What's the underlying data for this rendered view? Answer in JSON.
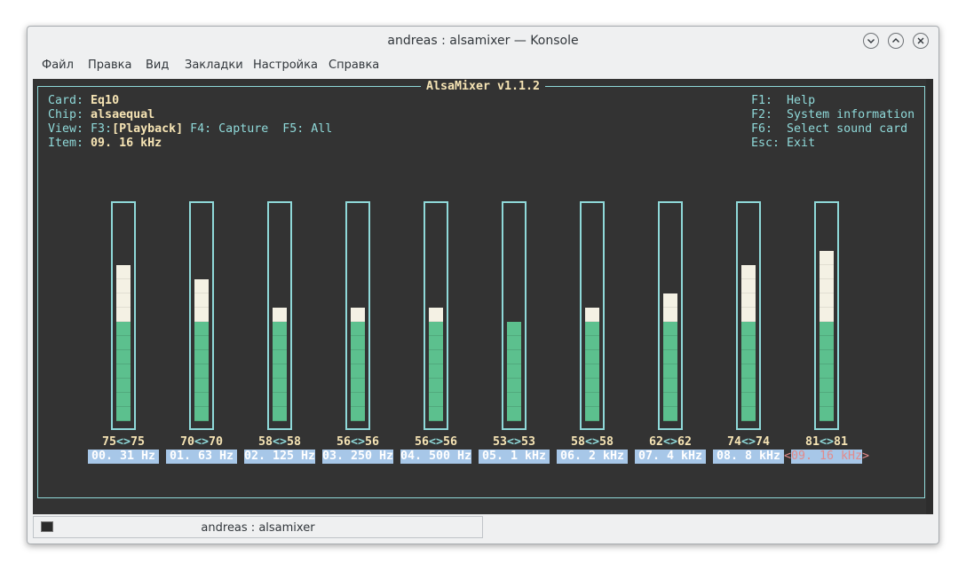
{
  "window": {
    "title": "andreas : alsamixer — Konsole"
  },
  "menu": [
    "Файл",
    "Правка",
    "Вид",
    "Закладки",
    "Настройка",
    "Справка"
  ],
  "mixer": {
    "title": "AlsaMixer v1.1.2",
    "info": {
      "card_label": "Card:",
      "card_value": "Eq10",
      "chip_label": "Chip:",
      "chip_value": "alsaequal",
      "view_label": "View:",
      "view_f3": "F3:",
      "view_playback": "[Playback]",
      "view_f4": "F4: Capture",
      "view_f5": "F5: All",
      "item_label": "Item:",
      "item_value": "09. 16 kHz"
    },
    "help": [
      {
        "key": "F1:",
        "text": "Help"
      },
      {
        "key": "F2:",
        "text": "System information"
      },
      {
        "key": "F6:",
        "text": "Select sound card"
      },
      {
        "key": "Esc:",
        "text": "Exit"
      }
    ],
    "channels": [
      {
        "name": "00. 31 Hz",
        "left": 75,
        "right": 75,
        "display": "75<>75",
        "level": 75
      },
      {
        "name": "01. 63 Hz",
        "left": 70,
        "right": 70,
        "display": "70<>70",
        "level": 70
      },
      {
        "name": "02. 125 Hz",
        "left": 58,
        "right": 58,
        "display": "58<>58",
        "level": 58
      },
      {
        "name": "03. 250 Hz",
        "left": 56,
        "right": 56,
        "display": "56<>56",
        "level": 56
      },
      {
        "name": "04. 500 Hz",
        "left": 56,
        "right": 56,
        "display": "56<>56",
        "level": 56
      },
      {
        "name": "05. 1 kHz",
        "left": 53,
        "right": 53,
        "display": "53<>53",
        "level": 53
      },
      {
        "name": "06. 2 kHz",
        "left": 58,
        "right": 58,
        "display": "58<>58",
        "level": 58
      },
      {
        "name": "07. 4 kHz",
        "left": 62,
        "right": 62,
        "display": "62<>62",
        "level": 62
      },
      {
        "name": "08. 8 kHz",
        "left": 74,
        "right": 74,
        "display": "74<>74",
        "level": 74
      },
      {
        "name": "09. 16 kHz",
        "left": 81,
        "right": 81,
        "display": "81<>81",
        "level": 81,
        "selected": true
      }
    ],
    "selection_marks": {
      "left": "<",
      "right": ">"
    }
  },
  "tabbar": {
    "label": "andreas : alsamixer"
  },
  "colors": {
    "terminal_bg": "#333333",
    "cyan": "#8fd9d9",
    "cream": "#f6e4b4",
    "green": "#5cc08e",
    "label_bg": "#a7c7e8",
    "selected_text": "#e38a8a"
  }
}
